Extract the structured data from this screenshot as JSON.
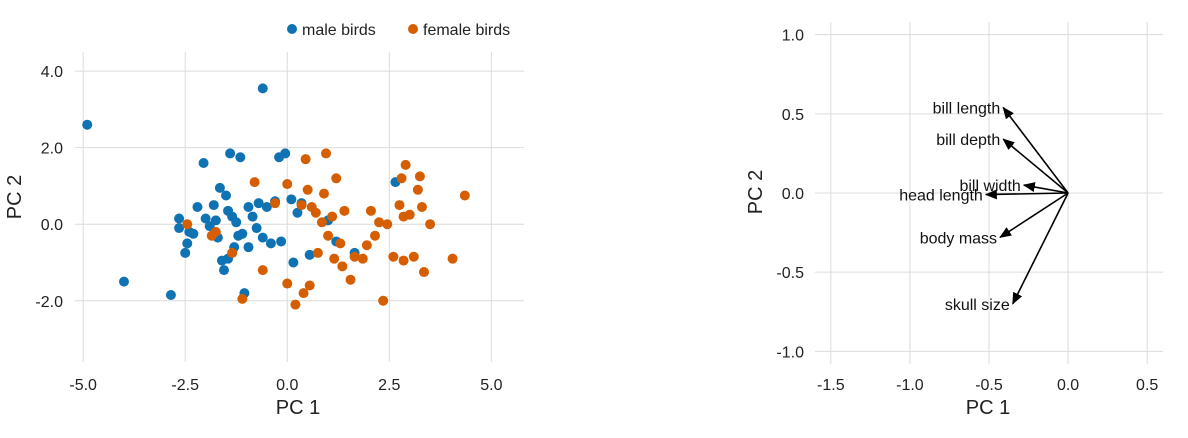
{
  "chart_data": [
    {
      "type": "scatter",
      "xlabel": "PC 1",
      "ylabel": "PC 2",
      "xlim": [
        -5.2,
        5.8
      ],
      "ylim": [
        -3.6,
        4.5
      ],
      "xticks": [
        -5,
        -2.5,
        0,
        2.5,
        5
      ],
      "xtick_labels": [
        "-5.0",
        "-2.5",
        "0.0",
        "2.5",
        "5.0"
      ],
      "yticks": [
        -2,
        0,
        2,
        4
      ],
      "ytick_labels": [
        "-2.0",
        "0.0",
        "2.0",
        "4.0"
      ],
      "grid": true,
      "legend_position": "top-right",
      "series": [
        {
          "name": "male birds",
          "color": "#0F72B2",
          "points": [
            [
              -4.9,
              2.6
            ],
            [
              -4.0,
              -1.5
            ],
            [
              -2.85,
              -1.85
            ],
            [
              -0.6,
              3.55
            ],
            [
              -2.65,
              0.15
            ],
            [
              -2.65,
              -0.1
            ],
            [
              -2.5,
              -0.75
            ],
            [
              -2.4,
              -0.2
            ],
            [
              -2.45,
              -0.5
            ],
            [
              -2.3,
              -0.25
            ],
            [
              -2.2,
              0.45
            ],
            [
              -2.0,
              0.15
            ],
            [
              -1.9,
              -0.05
            ],
            [
              -1.8,
              0.5
            ],
            [
              -1.7,
              -0.35
            ],
            [
              -1.65,
              0.95
            ],
            [
              -1.6,
              -0.95
            ],
            [
              -1.55,
              -1.2
            ],
            [
              -1.5,
              0.75
            ],
            [
              -1.45,
              -0.9
            ],
            [
              -1.4,
              1.85
            ],
            [
              -1.35,
              0.2
            ],
            [
              -1.3,
              -0.6
            ],
            [
              -1.25,
              0.05
            ],
            [
              -1.2,
              -0.3
            ],
            [
              -1.15,
              1.75
            ],
            [
              -1.1,
              -0.25
            ],
            [
              -1.05,
              -1.8
            ],
            [
              -0.95,
              0.45
            ],
            [
              -0.85,
              0.2
            ],
            [
              -0.75,
              -0.1
            ],
            [
              -0.7,
              0.55
            ],
            [
              -0.6,
              -0.35
            ],
            [
              -0.5,
              0.45
            ],
            [
              -0.4,
              -0.5
            ],
            [
              -0.3,
              0.6
            ],
            [
              -0.2,
              1.75
            ],
            [
              -0.15,
              -0.45
            ],
            [
              -0.05,
              1.85
            ],
            [
              0.1,
              0.65
            ],
            [
              0.15,
              -1.0
            ],
            [
              0.25,
              0.3
            ],
            [
              0.35,
              0.55
            ],
            [
              0.55,
              -0.8
            ],
            [
              1.0,
              0.1
            ],
            [
              1.2,
              -0.45
            ],
            [
              -1.45,
              0.35
            ],
            [
              -2.05,
              1.6
            ],
            [
              -1.75,
              0.1
            ],
            [
              -0.95,
              -0.6
            ],
            [
              2.65,
              1.1
            ],
            [
              1.65,
              -0.75
            ]
          ]
        },
        {
          "name": "female birds",
          "color": "#D55E00",
          "points": [
            [
              -2.45,
              0.0
            ],
            [
              -1.75,
              -0.2
            ],
            [
              -1.85,
              -0.3
            ],
            [
              -1.35,
              -0.75
            ],
            [
              -1.1,
              -1.95
            ],
            [
              -0.8,
              1.1
            ],
            [
              -0.6,
              -1.2
            ],
            [
              -0.3,
              0.55
            ],
            [
              0.0,
              1.05
            ],
            [
              0.0,
              -1.55
            ],
            [
              0.2,
              -2.1
            ],
            [
              0.35,
              0.5
            ],
            [
              0.4,
              -1.8
            ],
            [
              0.45,
              1.7
            ],
            [
              0.5,
              0.9
            ],
            [
              0.55,
              -1.6
            ],
            [
              0.6,
              0.45
            ],
            [
              0.7,
              0.3
            ],
            [
              0.75,
              -0.75
            ],
            [
              0.9,
              0.8
            ],
            [
              0.95,
              1.85
            ],
            [
              1.0,
              -0.3
            ],
            [
              1.1,
              0.2
            ],
            [
              1.15,
              -0.9
            ],
            [
              1.2,
              1.2
            ],
            [
              1.3,
              -0.5
            ],
            [
              1.35,
              -1.1
            ],
            [
              1.4,
              0.35
            ],
            [
              1.55,
              -1.45
            ],
            [
              1.65,
              -0.85
            ],
            [
              1.85,
              -0.9
            ],
            [
              2.05,
              0.35
            ],
            [
              2.15,
              -0.3
            ],
            [
              2.25,
              0.05
            ],
            [
              2.35,
              -2.0
            ],
            [
              2.45,
              0.0
            ],
            [
              2.6,
              -0.85
            ],
            [
              2.75,
              0.5
            ],
            [
              2.8,
              1.2
            ],
            [
              2.85,
              -0.95
            ],
            [
              2.9,
              1.55
            ],
            [
              3.0,
              0.25
            ],
            [
              3.1,
              -0.85
            ],
            [
              3.2,
              0.9
            ],
            [
              3.3,
              0.45
            ],
            [
              3.35,
              -1.25
            ],
            [
              3.5,
              0.0
            ],
            [
              4.05,
              -0.9
            ],
            [
              4.35,
              0.75
            ],
            [
              2.85,
              0.2
            ],
            [
              3.25,
              1.25
            ],
            [
              0.85,
              0.05
            ],
            [
              1.95,
              -0.55
            ]
          ]
        }
      ]
    },
    {
      "type": "line",
      "subtype": "arrows",
      "xlabel": "PC 1",
      "ylabel": "PC 2",
      "xlim": [
        -1.6,
        0.6
      ],
      "ylim": [
        -1.08,
        1.08
      ],
      "xticks": [
        -1.5,
        -1.0,
        -0.5,
        0.0,
        0.5
      ],
      "xtick_labels": [
        "-1.5",
        "-1.0",
        "-0.5",
        "0.0",
        "0.5"
      ],
      "yticks": [
        -1.0,
        -0.5,
        0.0,
        0.5,
        1.0
      ],
      "ytick_labels": [
        "-1.0",
        "-0.5",
        "0.0",
        "0.5",
        "1.0"
      ],
      "grid": true,
      "arrow_color": "#000000",
      "arrows": [
        {
          "label": "bill length",
          "x": -0.41,
          "y": 0.54
        },
        {
          "label": "bill depth",
          "x": -0.41,
          "y": 0.34
        },
        {
          "label": "bill width",
          "x": -0.28,
          "y": 0.05
        },
        {
          "label": "head length",
          "x": -0.52,
          "y": -0.01
        },
        {
          "label": "body mass",
          "x": -0.43,
          "y": -0.28
        },
        {
          "label": "skull size",
          "x": -0.35,
          "y": -0.7
        }
      ]
    }
  ]
}
